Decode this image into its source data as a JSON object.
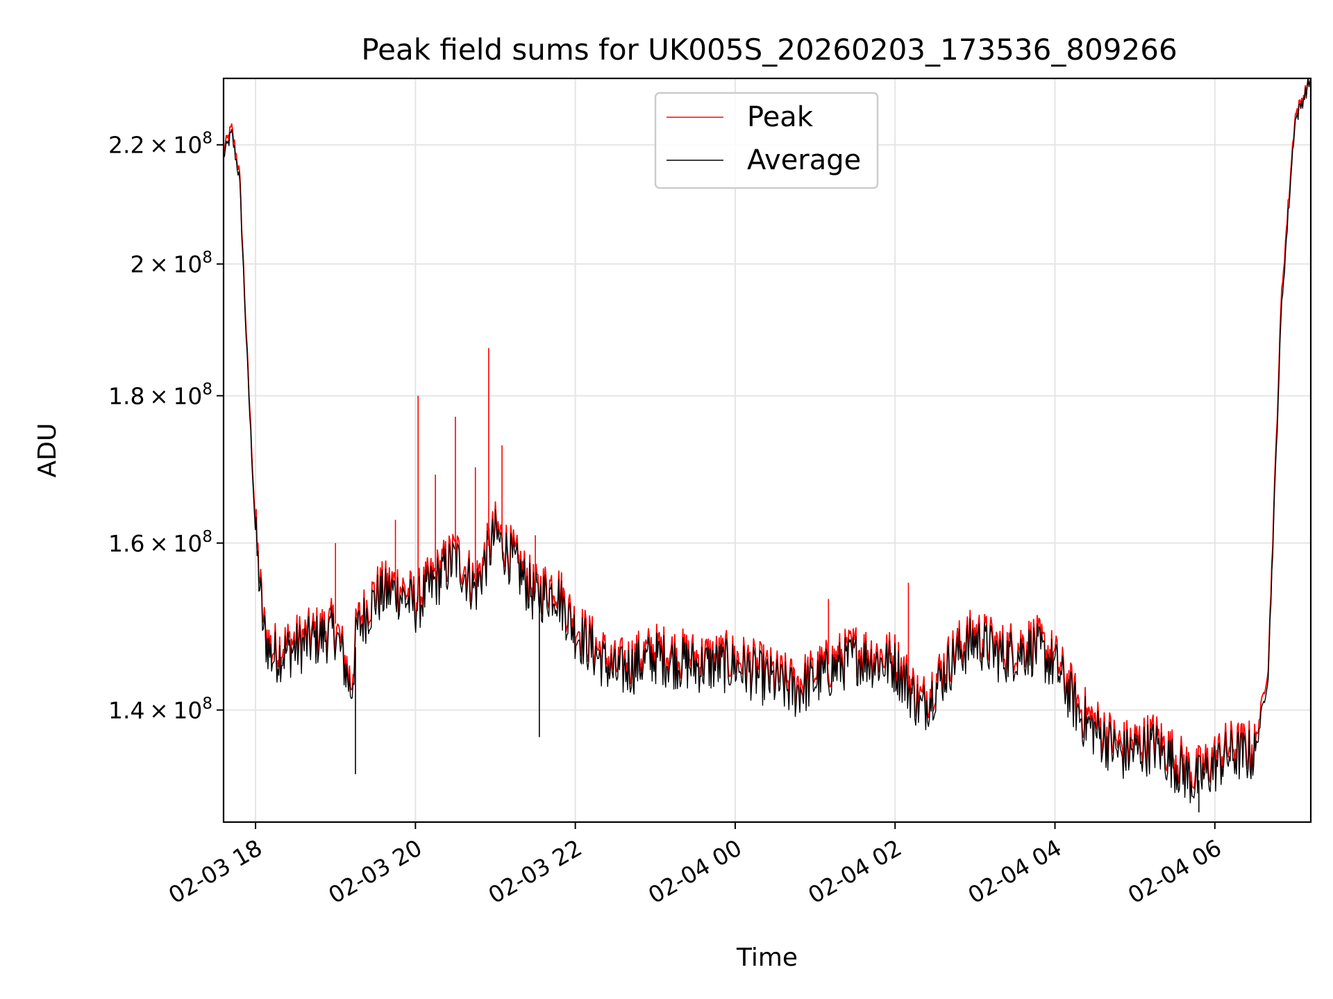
{
  "chart_data": {
    "type": "line",
    "title": "Peak field sums for UK005S_20260203_173536_809266",
    "xlabel": "Time",
    "ylabel": "ADU",
    "y_scale": "log",
    "grid": true,
    "legend_position": "top-center",
    "x_start": "2026-02-03 17:36",
    "x_end": "2026-02-04 07:12",
    "xlim_hours_from_0203_1800": [
      -0.4,
      13.2
    ],
    "ylim": [
      128000000,
      232000000
    ],
    "x_ticks": [
      "02-03 18",
      "02-03 20",
      "02-03 22",
      "02-04 00",
      "02-04 02",
      "02-04 04",
      "02-04 06"
    ],
    "y_ticks": [
      {
        "value": 140000000,
        "mantissa": "1.4",
        "exp": "8"
      },
      {
        "value": 160000000,
        "mantissa": "1.6",
        "exp": "8"
      },
      {
        "value": 180000000,
        "mantissa": "1.8",
        "exp": "8"
      },
      {
        "value": 200000000,
        "mantissa": "2",
        "exp": "8"
      },
      {
        "value": 220000000,
        "mantissa": "2.2",
        "exp": "8"
      }
    ],
    "series": [
      {
        "name": "Peak",
        "color": "#ff0000",
        "x": [
          "02-03 17:36",
          "02-03 17:42",
          "02-03 17:48",
          "02-03 17:54",
          "02-03 18:00",
          "02-03 18:06",
          "02-03 18:12",
          "02-03 18:30",
          "02-03 19:00",
          "02-03 19:12",
          "02-03 19:16",
          "02-03 19:30",
          "02-03 19:45",
          "02-03 20:00",
          "02-03 20:15",
          "02-03 20:30",
          "02-03 20:45",
          "02-03 21:00",
          "02-03 21:15",
          "02-03 21:30",
          "02-03 21:45",
          "02-03 22:00",
          "02-03 22:30",
          "02-03 23:00",
          "02-03 23:30",
          "02-04 00:00",
          "02-04 00:45",
          "02-04 01:30",
          "02-04 02:00",
          "02-04 02:20",
          "02-04 02:45",
          "02-04 03:00",
          "02-04 03:20",
          "02-04 03:45",
          "02-04 04:00",
          "02-04 04:20",
          "02-04 04:50",
          "02-04 05:15",
          "02-04 05:45",
          "02-04 06:10",
          "02-04 06:30",
          "02-04 06:40",
          "02-04 06:50",
          "02-04 07:00",
          "02-04 07:12"
        ],
        "values": [
          219000000,
          223000000,
          215000000,
          185000000,
          162000000,
          150000000,
          147000000,
          148000000,
          150000000,
          143000000,
          150000000,
          154000000,
          155000000,
          153000000,
          156000000,
          159000000,
          155000000,
          162000000,
          158000000,
          154000000,
          155000000,
          150000000,
          145000000,
          147000000,
          146000000,
          146000000,
          143000000,
          147000000,
          146000000,
          141000000,
          147000000,
          149000000,
          147000000,
          148000000,
          146000000,
          140000000,
          136000000,
          137000000,
          133000000,
          136000000,
          136000000,
          145000000,
          195000000,
          225000000,
          232000000
        ]
      },
      {
        "name": "Average",
        "color": "#000000",
        "x": [
          "02-03 17:36",
          "02-03 17:42",
          "02-03 17:48",
          "02-03 17:54",
          "02-03 18:00",
          "02-03 18:06",
          "02-03 18:12",
          "02-03 18:30",
          "02-03 19:00",
          "02-03 19:12",
          "02-03 19:16",
          "02-03 19:30",
          "02-03 19:45",
          "02-03 20:00",
          "02-03 20:15",
          "02-03 20:30",
          "02-03 20:45",
          "02-03 21:00",
          "02-03 21:15",
          "02-03 21:30",
          "02-03 21:45",
          "02-03 22:00",
          "02-03 22:30",
          "02-03 23:00",
          "02-03 23:30",
          "02-04 00:00",
          "02-04 00:45",
          "02-04 01:30",
          "02-04 02:00",
          "02-04 02:20",
          "02-04 02:45",
          "02-04 03:00",
          "02-04 03:20",
          "02-04 03:45",
          "02-04 04:00",
          "02-04 04:20",
          "02-04 04:50",
          "02-04 05:15",
          "02-04 05:45",
          "02-04 06:10",
          "02-04 06:30",
          "02-04 06:40",
          "02-04 06:50",
          "02-04 07:00",
          "02-04 07:12"
        ],
        "values": [
          218000000,
          222000000,
          214000000,
          184000000,
          161000000,
          149000000,
          146000000,
          147000000,
          149000000,
          142000000,
          149000000,
          153000000,
          154000000,
          152000000,
          155000000,
          158000000,
          154000000,
          161000000,
          157000000,
          153000000,
          154000000,
          149000000,
          144000000,
          146000000,
          145000000,
          145000000,
          142000000,
          146000000,
          145000000,
          140000000,
          146000000,
          148000000,
          146000000,
          147000000,
          145000000,
          139000000,
          135000000,
          136000000,
          132000000,
          135000000,
          135000000,
          144000000,
          193000000,
          224000000,
          232000000
        ]
      }
    ],
    "spikes": [
      {
        "series": "Peak",
        "x": "02-03 19:00",
        "value": 160000000
      },
      {
        "series": "Peak",
        "x": "02-03 19:45",
        "value": 163000000
      },
      {
        "series": "Peak",
        "x": "02-03 20:02",
        "value": 180000000
      },
      {
        "series": "Peak",
        "x": "02-03 20:15",
        "value": 169000000
      },
      {
        "series": "Peak",
        "x": "02-03 20:30",
        "value": 177000000
      },
      {
        "series": "Peak",
        "x": "02-03 20:45",
        "value": 170000000
      },
      {
        "series": "Peak",
        "x": "02-03 20:55",
        "value": 187000000
      },
      {
        "series": "Peak",
        "x": "02-03 21:05",
        "value": 173000000
      },
      {
        "series": "Peak",
        "x": "02-03 21:30",
        "value": 161000000
      },
      {
        "series": "Average",
        "x": "02-03 19:15",
        "value": 133000000
      },
      {
        "series": "Average",
        "x": "02-03 21:33",
        "value": 137000000
      },
      {
        "series": "Average",
        "x": "02-04 05:48",
        "value": 129000000
      },
      {
        "series": "Peak",
        "x": "02-04 01:10",
        "value": 153000000
      },
      {
        "series": "Peak",
        "x": "02-04 02:10",
        "value": 155000000
      }
    ]
  }
}
